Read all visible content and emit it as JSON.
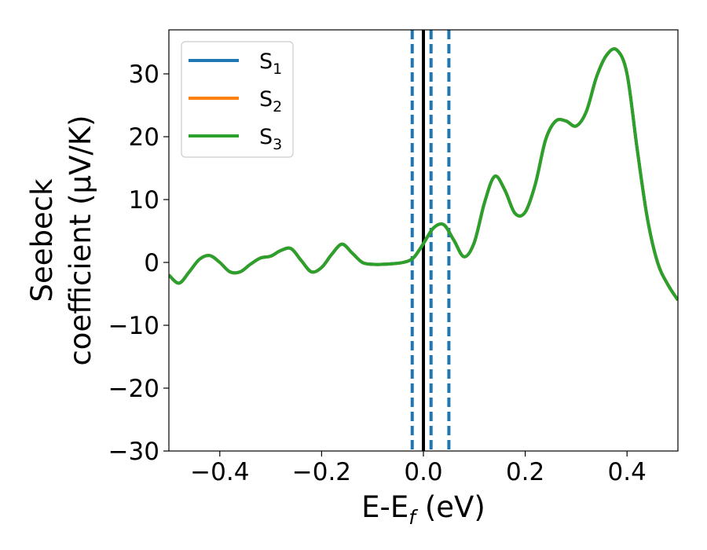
{
  "chart_data": {
    "type": "line",
    "xlabel": {
      "main": "E-E",
      "sub": "f",
      "rest": " (eV)"
    },
    "ylabel": {
      "line1": "Seebeck",
      "line2": "coefficient  (μV/K)"
    },
    "xlim": [
      -0.5,
      0.5
    ],
    "ylim": [
      -30,
      37
    ],
    "xticks": [
      -0.4,
      -0.2,
      0.0,
      0.2,
      0.4
    ],
    "xtick_labels": [
      "−0.4",
      "−0.2",
      "0.0",
      "0.2",
      "0.4"
    ],
    "yticks": [
      -30,
      -20,
      -10,
      0,
      10,
      20,
      30
    ],
    "ytick_labels": [
      "−30",
      "−20",
      "−10",
      "0",
      "10",
      "20",
      "30"
    ],
    "grid": false,
    "legend_position": "top-left",
    "legend": [
      {
        "base": "S",
        "sub": "1",
        "color": "#1f77b4"
      },
      {
        "base": "S",
        "sub": "2",
        "color": "#ff7f0e"
      },
      {
        "base": "S",
        "sub": "3",
        "color": "#2ca02c"
      }
    ],
    "vlines": [
      {
        "x": 0.0,
        "style": "solid",
        "color": "#000000"
      },
      {
        "x": -0.022,
        "style": "dashed",
        "color": "#1f77b4"
      },
      {
        "x": 0.015,
        "style": "dashed",
        "color": "#1f77b4"
      },
      {
        "x": 0.05,
        "style": "dashed",
        "color": "#1f77b4"
      }
    ],
    "x": [
      -0.5,
      -0.48,
      -0.46,
      -0.44,
      -0.42,
      -0.4,
      -0.38,
      -0.36,
      -0.34,
      -0.32,
      -0.3,
      -0.28,
      -0.26,
      -0.24,
      -0.22,
      -0.2,
      -0.18,
      -0.16,
      -0.14,
      -0.12,
      -0.1,
      -0.08,
      -0.06,
      -0.04,
      -0.02,
      0.0,
      0.02,
      0.04,
      0.06,
      0.08,
      0.1,
      0.12,
      0.14,
      0.16,
      0.18,
      0.2,
      0.22,
      0.24,
      0.26,
      0.28,
      0.3,
      0.32,
      0.34,
      0.36,
      0.38,
      0.4,
      0.42,
      0.44,
      0.46,
      0.48,
      0.5
    ],
    "series": [
      {
        "name": "S1",
        "color": "#1f77b4",
        "values": [
          -2.0,
          -3.3,
          -1.5,
          0.5,
          1.1,
          0.0,
          -1.5,
          -1.5,
          -0.3,
          0.7,
          1.0,
          1.9,
          2.2,
          0.3,
          -1.5,
          -0.8,
          1.3,
          2.9,
          1.5,
          0.0,
          -0.3,
          -0.3,
          -0.2,
          0.0,
          0.7,
          3.0,
          5.5,
          6.0,
          3.5,
          0.9,
          3.2,
          9.5,
          13.7,
          11.5,
          7.8,
          8.0,
          12.5,
          19.5,
          22.5,
          22.5,
          21.7,
          24.0,
          29.5,
          33.0,
          33.8,
          30.0,
          18.0,
          7.0,
          0.0,
          -3.5,
          -6.0
        ]
      },
      {
        "name": "S2",
        "color": "#ff7f0e",
        "values": [
          -2.0,
          -3.3,
          -1.5,
          0.5,
          1.1,
          0.0,
          -1.5,
          -1.5,
          -0.3,
          0.7,
          1.0,
          1.9,
          2.2,
          0.3,
          -1.5,
          -0.8,
          1.3,
          2.9,
          1.5,
          0.0,
          -0.3,
          -0.3,
          -0.2,
          0.0,
          0.7,
          3.0,
          5.5,
          6.0,
          3.5,
          0.9,
          3.2,
          9.5,
          13.7,
          11.5,
          7.8,
          8.0,
          12.5,
          19.5,
          22.5,
          22.5,
          21.7,
          24.0,
          29.5,
          33.0,
          33.8,
          30.0,
          18.0,
          7.0,
          0.0,
          -3.5,
          -6.0
        ]
      },
      {
        "name": "S3",
        "color": "#2ca02c",
        "values": [
          -2.0,
          -3.3,
          -1.5,
          0.5,
          1.1,
          0.0,
          -1.5,
          -1.5,
          -0.3,
          0.7,
          1.0,
          1.9,
          2.2,
          0.3,
          -1.5,
          -0.8,
          1.3,
          2.9,
          1.5,
          0.0,
          -0.3,
          -0.3,
          -0.2,
          0.0,
          0.7,
          3.0,
          5.5,
          6.0,
          3.5,
          0.9,
          3.2,
          9.5,
          13.7,
          11.5,
          7.8,
          8.0,
          12.5,
          19.5,
          22.5,
          22.5,
          21.7,
          24.0,
          29.5,
          33.0,
          33.8,
          30.0,
          18.0,
          7.0,
          0.0,
          -3.5,
          -6.0
        ]
      }
    ]
  }
}
